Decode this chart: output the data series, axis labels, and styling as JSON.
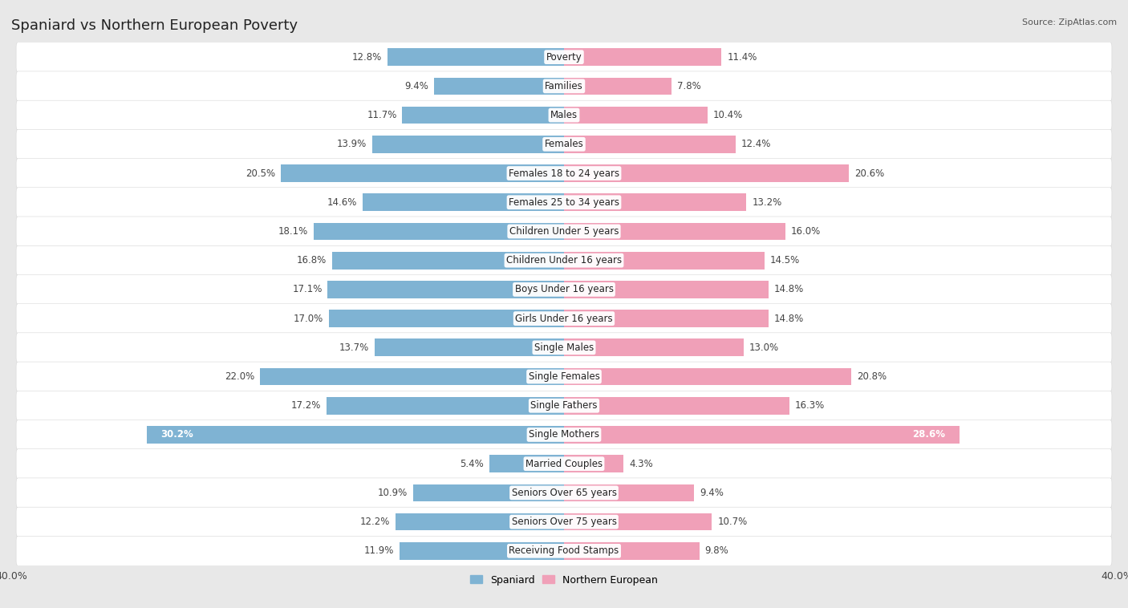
{
  "title": "Spaniard vs Northern European Poverty",
  "source": "Source: ZipAtlas.com",
  "categories": [
    "Poverty",
    "Families",
    "Males",
    "Females",
    "Females 18 to 24 years",
    "Females 25 to 34 years",
    "Children Under 5 years",
    "Children Under 16 years",
    "Boys Under 16 years",
    "Girls Under 16 years",
    "Single Males",
    "Single Females",
    "Single Fathers",
    "Single Mothers",
    "Married Couples",
    "Seniors Over 65 years",
    "Seniors Over 75 years",
    "Receiving Food Stamps"
  ],
  "spaniard": [
    12.8,
    9.4,
    11.7,
    13.9,
    20.5,
    14.6,
    18.1,
    16.8,
    17.1,
    17.0,
    13.7,
    22.0,
    17.2,
    30.2,
    5.4,
    10.9,
    12.2,
    11.9
  ],
  "northern_european": [
    11.4,
    7.8,
    10.4,
    12.4,
    20.6,
    13.2,
    16.0,
    14.5,
    14.8,
    14.8,
    13.0,
    20.8,
    16.3,
    28.6,
    4.3,
    9.4,
    10.7,
    9.8
  ],
  "spaniard_color": "#7fb3d3",
  "northern_european_color": "#f0a0b8",
  "highlight_rows": [
    13
  ],
  "max_value": 40.0,
  "background_color": "#e8e8e8",
  "row_bg_color": "#ffffff",
  "bar_height": 0.6,
  "label_fontsize": 8.5,
  "category_fontsize": 8.5,
  "title_fontsize": 13,
  "source_fontsize": 8
}
